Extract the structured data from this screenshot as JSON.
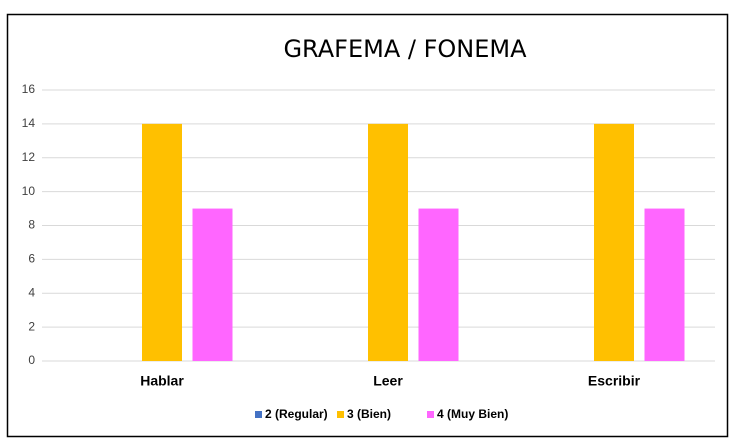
{
  "chart_data": {
    "type": "bar",
    "title": "GRAFEMA / FONEMA",
    "categories": [
      "Hablar",
      "Leer",
      "Escribir"
    ],
    "series": [
      {
        "name": "2 (Regular)",
        "color": "#4472c4",
        "values": [
          0,
          0,
          0
        ]
      },
      {
        "name": "3 (Bien)",
        "color": "#ffc000",
        "values": [
          14,
          14,
          14
        ]
      },
      {
        "name": "4 (Muy Bien)",
        "color": "#ff66ff",
        "values": [
          9,
          9,
          9
        ]
      }
    ],
    "ylim": [
      0,
      16
    ],
    "yticks": [
      0,
      2,
      4,
      6,
      8,
      10,
      12,
      14,
      16
    ],
    "grid": true,
    "legend": "bottom"
  }
}
